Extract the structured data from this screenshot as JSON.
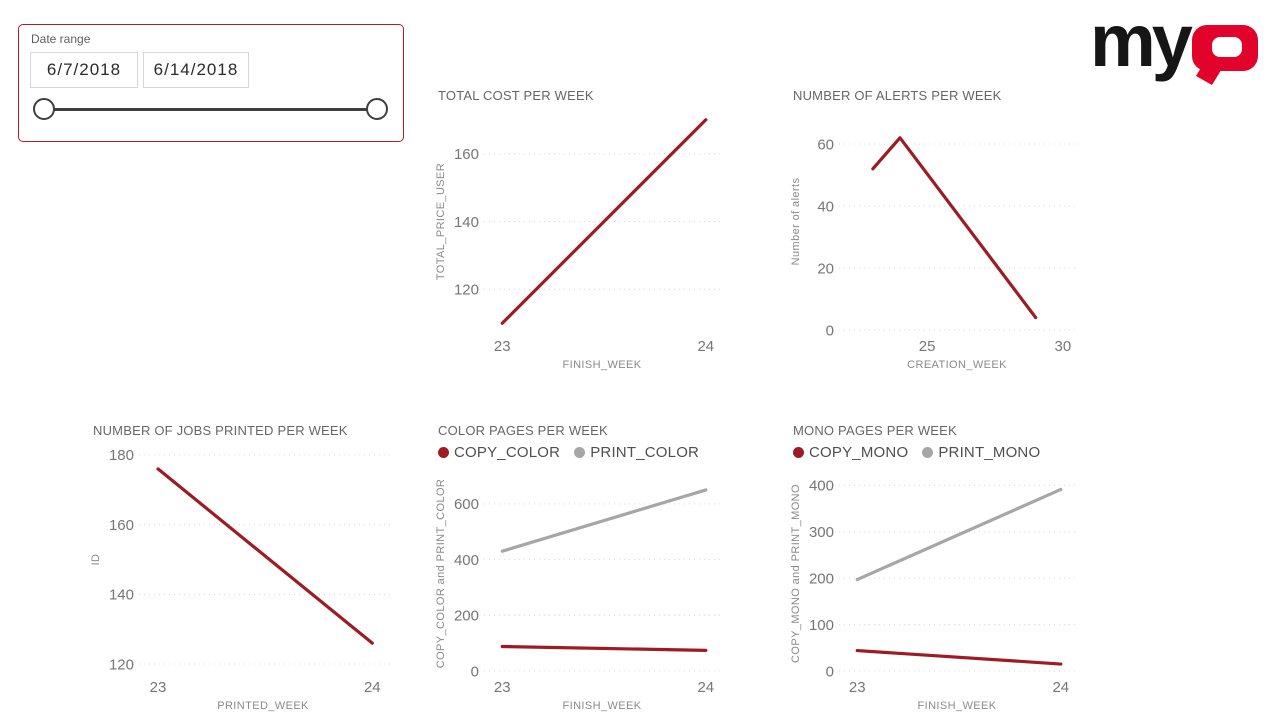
{
  "slicer": {
    "label": "Date range",
    "start_date": "6/7/2018",
    "end_date": "6/14/2018"
  },
  "logo": {
    "my": "my",
    "q": "Q"
  },
  "colors": {
    "line_red": "#9e1b23",
    "line_gray": "#a6a6a6",
    "logo_red": "#e2032d",
    "logo_black": "#161616",
    "slicer_border": "#b01e24"
  },
  "chart_data": [
    {
      "id": "total-cost-per-week",
      "type": "line",
      "title": "TOTAL COST PER WEEK",
      "xlabel": "FINISH_WEEK",
      "ylabel": "TOTAL_PRICE_USER",
      "x": [
        23,
        24
      ],
      "xticks": [
        23,
        24
      ],
      "xlim": [
        22.93,
        24.05
      ],
      "yticks": [
        120,
        140,
        160
      ],
      "ylim": [
        108,
        172
      ],
      "grid": true,
      "legend": false,
      "series": [
        {
          "name": "TOTAL_PRICE_USER",
          "color": "#9e1b23",
          "values": [
            110,
            170
          ]
        }
      ]
    },
    {
      "id": "number-of-alerts-per-week",
      "type": "line",
      "title": "NUMBER OF ALERTS PER WEEK",
      "xlabel": "CREATION_WEEK",
      "ylabel": "Number of alerts",
      "x": [
        23,
        24,
        29
      ],
      "xticks": [
        25,
        30
      ],
      "xlim": [
        21.9,
        30.3
      ],
      "yticks": [
        0,
        20,
        40,
        60
      ],
      "ylim": [
        0,
        70
      ],
      "grid": true,
      "legend": false,
      "series": [
        {
          "name": "Number of alerts",
          "color": "#9e1b23",
          "values": [
            52,
            62,
            4
          ]
        }
      ]
    },
    {
      "id": "number-of-jobs-printed-per-week",
      "type": "line",
      "title": "NUMBER OF JOBS PRINTED PER WEEK",
      "xlabel": "PRINTED_WEEK",
      "ylabel": "ID",
      "x": [
        23,
        24
      ],
      "xticks": [
        23,
        24
      ],
      "xlim": [
        22.93,
        24.05
      ],
      "yticks": [
        120,
        140,
        160,
        180
      ],
      "ylim": [
        118,
        182
      ],
      "grid": true,
      "legend": false,
      "series": [
        {
          "name": "ID",
          "color": "#9e1b23",
          "values": [
            176,
            126
          ]
        }
      ]
    },
    {
      "id": "color-pages-per-week",
      "type": "line",
      "title": "COLOR PAGES PER WEEK",
      "xlabel": "FINISH_WEEK",
      "ylabel": "COPY_COLOR and PRINT_COLOR",
      "x": [
        23,
        24
      ],
      "xticks": [
        23,
        24
      ],
      "xlim": [
        22.93,
        24.05
      ],
      "yticks": [
        0,
        200,
        400,
        600
      ],
      "ylim": [
        0,
        700
      ],
      "grid": true,
      "legend": true,
      "legend_position": "top",
      "series": [
        {
          "name": "COPY_COLOR",
          "color": "#9e1b23",
          "values": [
            88,
            74
          ]
        },
        {
          "name": "PRINT_COLOR",
          "color": "#a6a6a6",
          "values": [
            430,
            650
          ]
        }
      ]
    },
    {
      "id": "mono-pages-per-week",
      "type": "line",
      "title": "MONO PAGES PER WEEK",
      "xlabel": "FINISH_WEEK",
      "ylabel": "COPY_MONO and PRINT_MONO",
      "x": [
        23,
        24
      ],
      "xticks": [
        23,
        24
      ],
      "xlim": [
        22.93,
        24.05
      ],
      "yticks": [
        0,
        100,
        200,
        300,
        400
      ],
      "ylim": [
        0,
        420
      ],
      "grid": true,
      "legend": true,
      "legend_position": "top",
      "series": [
        {
          "name": "COPY_MONO",
          "color": "#9e1b23",
          "values": [
            44,
            15
          ]
        },
        {
          "name": "PRINT_MONO",
          "color": "#a6a6a6",
          "values": [
            197,
            391
          ]
        }
      ]
    }
  ]
}
